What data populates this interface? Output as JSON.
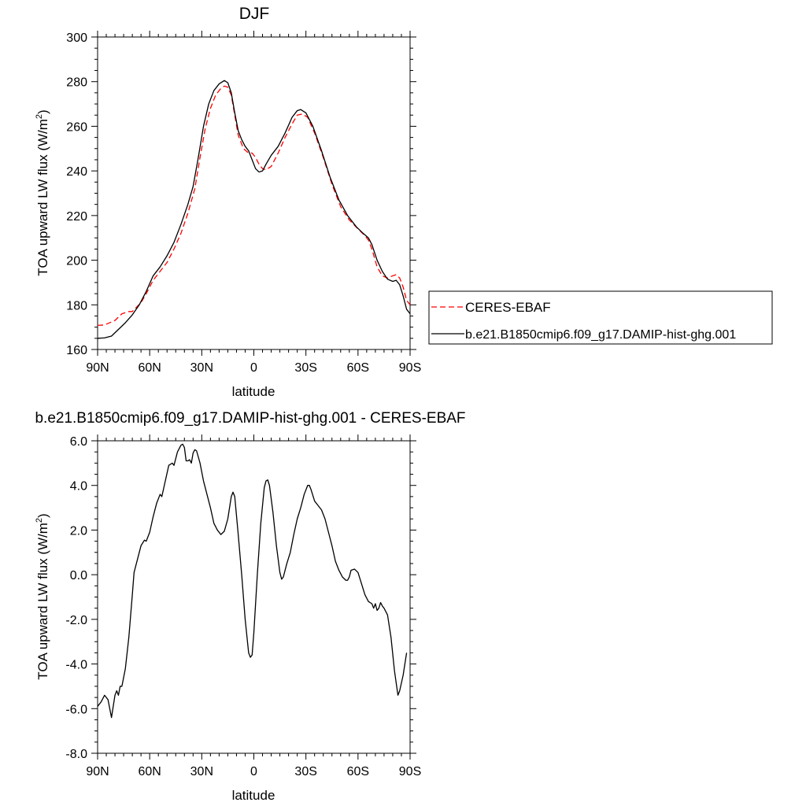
{
  "chart_data": [
    {
      "type": "line",
      "title": "DJF",
      "xlabel": "latitude",
      "ylabel": "TOA upward LW flux (W/m",
      "ylabel_sup": "2",
      "ylabel_close": ")",
      "xlim": [
        90,
        -90
      ],
      "ylim": [
        160,
        300
      ],
      "xticks": [
        90,
        60,
        30,
        0,
        -30,
        -60,
        -90
      ],
      "xtick_labels": [
        "90N",
        "60N",
        "30N",
        "0",
        "30S",
        "60S",
        "90S"
      ],
      "yticks": [
        160,
        180,
        200,
        220,
        240,
        260,
        280,
        300
      ],
      "ytick_labels": [
        "160",
        "180",
        "200",
        "220",
        "240",
        "260",
        "280",
        "300"
      ],
      "legend_position": "right",
      "series": [
        {
          "name": "CERES-EBAF",
          "color": "#ff0000",
          "dash": "dashed",
          "points": [
            [
              90,
              170.8
            ],
            [
              86,
              171
            ],
            [
              80,
              173
            ],
            [
              76,
              176
            ],
            [
              72,
              177
            ],
            [
              70,
              177
            ],
            [
              65,
              181
            ],
            [
              62,
              185
            ],
            [
              58,
              191
            ],
            [
              54,
              195
            ],
            [
              50,
              199
            ],
            [
              46,
              205
            ],
            [
              42,
              212
            ],
            [
              38,
              221
            ],
            [
              34,
              232
            ],
            [
              31,
              246
            ],
            [
              28,
              259
            ],
            [
              25,
              268
            ],
            [
              22,
              274
            ],
            [
              19,
              277
            ],
            [
              17,
              278
            ],
            [
              15,
              277.5
            ],
            [
              13,
              274
            ],
            [
              11,
              265
            ],
            [
              9,
              256
            ],
            [
              6,
              250
            ],
            [
              3,
              248
            ],
            [
              1,
              248
            ],
            [
              -1,
              246
            ],
            [
              -3,
              243
            ],
            [
              -5,
              241
            ],
            [
              -7,
              240.5
            ],
            [
              -10,
              242
            ],
            [
              -14,
              248
            ],
            [
              -18,
              255
            ],
            [
              -22,
              261
            ],
            [
              -25,
              265
            ],
            [
              -28,
              265.5
            ],
            [
              -31,
              264
            ],
            [
              -35,
              257
            ],
            [
              -40,
              246
            ],
            [
              -45,
              234
            ],
            [
              -50,
              224
            ],
            [
              -55,
              218
            ],
            [
              -60,
              214
            ],
            [
              -64,
              211
            ],
            [
              -66,
              209
            ],
            [
              -68,
              205
            ],
            [
              -71,
              197
            ],
            [
              -74,
              193
            ],
            [
              -77,
              192
            ],
            [
              -80,
              193
            ],
            [
              -82,
              193.5
            ],
            [
              -84,
              192
            ],
            [
              -86,
              188
            ],
            [
              -88,
              182
            ],
            [
              -90,
              180
            ]
          ]
        },
        {
          "name": "b.e21.B1850cmip6.f09_g17.DAMIP-hist-ghg.001",
          "color": "#000000",
          "dash": "solid",
          "points": [
            [
              90,
              165
            ],
            [
              86,
              165.2
            ],
            [
              82,
              166
            ],
            [
              78,
              169
            ],
            [
              74,
              172
            ],
            [
              70,
              175.5
            ],
            [
              66,
              180
            ],
            [
              62,
              186
            ],
            [
              58,
              193
            ],
            [
              54,
              197
            ],
            [
              50,
              202
            ],
            [
              46,
              208
            ],
            [
              42,
              216
            ],
            [
              38,
              225
            ],
            [
              35,
              233
            ],
            [
              32,
              246
            ],
            [
              29,
              260
            ],
            [
              26,
              270
            ],
            [
              23,
              276
            ],
            [
              20,
              279
            ],
            [
              17,
              280.5
            ],
            [
              15,
              279.5
            ],
            [
              13,
              275
            ],
            [
              11,
              266
            ],
            [
              9,
              258
            ],
            [
              7,
              254
            ],
            [
              5,
              251
            ],
            [
              3,
              249
            ],
            [
              1,
              245
            ],
            [
              -1,
              241
            ],
            [
              -3,
              239.5
            ],
            [
              -5,
              240
            ],
            [
              -7,
              243
            ],
            [
              -10,
              247
            ],
            [
              -14,
              251
            ],
            [
              -18,
              257
            ],
            [
              -22,
              264
            ],
            [
              -25,
              267
            ],
            [
              -27,
              267.5
            ],
            [
              -30,
              266
            ],
            [
              -34,
              260
            ],
            [
              -39,
              249
            ],
            [
              -44,
              237
            ],
            [
              -49,
              227
            ],
            [
              -54,
              220
            ],
            [
              -59,
              215
            ],
            [
              -63,
              212
            ],
            [
              -66,
              210
            ],
            [
              -68,
              207
            ],
            [
              -71,
              200
            ],
            [
              -74,
              195
            ],
            [
              -77,
              191.5
            ],
            [
              -80,
              190.5
            ],
            [
              -82,
              191
            ],
            [
              -84,
              189
            ],
            [
              -86,
              184
            ],
            [
              -88,
              178
            ],
            [
              -90,
              176
            ]
          ]
        }
      ]
    },
    {
      "type": "line",
      "title": "b.e21.B1850cmip6.f09_g17.DAMIP-hist-ghg.001 - CERES-EBAF",
      "xlabel": "latitude",
      "ylabel": "TOA upward LW flux (W/m",
      "ylabel_sup": "2",
      "ylabel_close": ")",
      "xlim": [
        90,
        -90
      ],
      "ylim": [
        -8,
        6
      ],
      "xticks": [
        90,
        60,
        30,
        0,
        -30,
        -60,
        -90
      ],
      "xtick_labels": [
        "90N",
        "60N",
        "30N",
        "0",
        "30S",
        "60S",
        "90S"
      ],
      "yticks": [
        -8,
        -6,
        -4,
        -2,
        0,
        2,
        4,
        6
      ],
      "ytick_labels": [
        "-8.0",
        "-6.0",
        "-4.0",
        "-2.0",
        "0.0",
        "2.0",
        "4.0",
        "6.0"
      ],
      "series": [
        {
          "color": "#000000",
          "dash": "solid",
          "points": [
            [
              90,
              -5.9
            ],
            [
              88,
              -5.7
            ],
            [
              86,
              -5.4
            ],
            [
              84,
              -5.6
            ],
            [
              82,
              -6.4
            ],
            [
              80,
              -5.4
            ],
            [
              79,
              -5.2
            ],
            [
              78,
              -5.4
            ],
            [
              77,
              -5.0
            ],
            [
              76,
              -5.0
            ],
            [
              74,
              -4.2
            ],
            [
              72,
              -2.8
            ],
            [
              70,
              -0.9
            ],
            [
              69,
              0.1
            ],
            [
              67,
              0.7
            ],
            [
              65,
              1.3
            ],
            [
              63,
              1.55
            ],
            [
              62,
              1.5
            ],
            [
              60,
              1.9
            ],
            [
              58,
              2.6
            ],
            [
              56,
              3.2
            ],
            [
              54,
              3.6
            ],
            [
              53,
              3.5
            ],
            [
              51,
              4.2
            ],
            [
              49,
              4.9
            ],
            [
              47,
              5.0
            ],
            [
              46,
              4.9
            ],
            [
              44,
              5.5
            ],
            [
              42,
              5.8
            ],
            [
              41,
              5.85
            ],
            [
              40,
              5.7
            ],
            [
              39,
              5.1
            ],
            [
              38,
              5.1
            ],
            [
              37,
              5.15
            ],
            [
              36,
              5.0
            ],
            [
              35,
              5.45
            ],
            [
              34,
              5.6
            ],
            [
              33,
              5.55
            ],
            [
              31,
              5.0
            ],
            [
              29,
              4.2
            ],
            [
              27,
              3.6
            ],
            [
              25,
              3.0
            ],
            [
              23,
              2.3
            ],
            [
              21,
              2.0
            ],
            [
              19,
              1.8
            ],
            [
              17,
              1.95
            ],
            [
              15,
              2.5
            ],
            [
              13,
              3.5
            ],
            [
              12,
              3.7
            ],
            [
              11,
              3.5
            ],
            [
              9,
              1.8
            ],
            [
              7,
              0.0
            ],
            [
              5,
              -2.0
            ],
            [
              3,
              -3.5
            ],
            [
              2,
              -3.7
            ],
            [
              1,
              -3.6
            ],
            [
              0,
              -2.6
            ],
            [
              -2,
              0.0
            ],
            [
              -4,
              2.3
            ],
            [
              -6,
              3.9
            ],
            [
              -7,
              4.2
            ],
            [
              -8,
              4.25
            ],
            [
              -9,
              4.0
            ],
            [
              -11,
              2.8
            ],
            [
              -13,
              1.3
            ],
            [
              -15,
              0.1
            ],
            [
              -16,
              -0.2
            ],
            [
              -17,
              -0.1
            ],
            [
              -19,
              0.5
            ],
            [
              -21,
              1.0
            ],
            [
              -23,
              1.8
            ],
            [
              -25,
              2.5
            ],
            [
              -27,
              3.0
            ],
            [
              -29,
              3.6
            ],
            [
              -31,
              4.0
            ],
            [
              -32,
              4.0
            ],
            [
              -33,
              3.8
            ],
            [
              -35,
              3.3
            ],
            [
              -37,
              3.1
            ],
            [
              -39,
              2.9
            ],
            [
              -41,
              2.5
            ],
            [
              -43,
              1.9
            ],
            [
              -45,
              1.3
            ],
            [
              -47,
              0.6
            ],
            [
              -49,
              0.2
            ],
            [
              -51,
              -0.1
            ],
            [
              -53,
              -0.25
            ],
            [
              -54,
              -0.25
            ],
            [
              -55,
              -0.1
            ],
            [
              -56,
              0.2
            ],
            [
              -58,
              0.25
            ],
            [
              -60,
              0.1
            ],
            [
              -62,
              -0.4
            ],
            [
              -64,
              -0.9
            ],
            [
              -66,
              -1.2
            ],
            [
              -68,
              -1.3
            ],
            [
              -69,
              -1.5
            ],
            [
              -70,
              -1.3
            ],
            [
              -71,
              -1.6
            ],
            [
              -72,
              -1.5
            ],
            [
              -73,
              -1.25
            ],
            [
              -74,
              -1.4
            ],
            [
              -75,
              -1.5
            ],
            [
              -77,
              -1.8
            ],
            [
              -79,
              -2.8
            ],
            [
              -81,
              -4.3
            ],
            [
              -83,
              -5.4
            ],
            [
              -84,
              -5.2
            ],
            [
              -86,
              -4.5
            ],
            [
              -88,
              -3.5
            ]
          ]
        }
      ]
    }
  ]
}
